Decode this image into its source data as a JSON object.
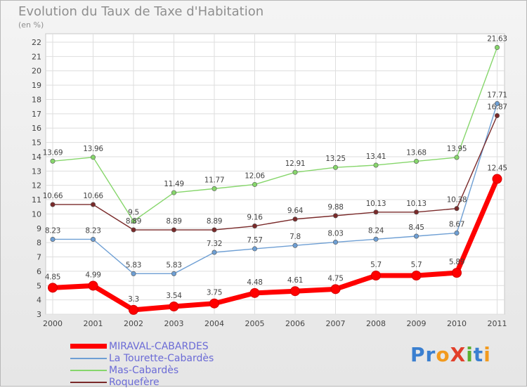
{
  "chart_data": {
    "type": "line",
    "title": "Evolution du Taux de Taxe d'Habitation",
    "subtitle": "(en %)",
    "xlabel": "",
    "ylabel": "",
    "ylim": [
      3,
      22
    ],
    "yticks": [
      3,
      4,
      5,
      6,
      7,
      8,
      9,
      10,
      11,
      12,
      13,
      14,
      15,
      16,
      17,
      18,
      19,
      20,
      21,
      22
    ],
    "categories": [
      "2000",
      "2001",
      "2002",
      "2003",
      "2004",
      "2005",
      "2006",
      "2007",
      "2008",
      "2009",
      "2010",
      "2011"
    ],
    "grid": true,
    "legend_position": "bottom-left",
    "series": [
      {
        "name": "MIRAVAL-CABARDES",
        "color": "#ff0000",
        "values": [
          4.85,
          4.99,
          3.3,
          3.54,
          3.75,
          4.48,
          4.61,
          4.75,
          5.7,
          5.7,
          5.89,
          12.45
        ],
        "labels": [
          "4.85",
          "4.99",
          "3.3",
          "3.54",
          "3.75",
          "4.48",
          "4.61",
          "4.75",
          "5.7",
          "5.7",
          "5.89",
          "12.45"
        ]
      },
      {
        "name": "La Tourette-Cabardès",
        "color": "#6e9fd4",
        "values": [
          8.23,
          8.23,
          5.83,
          5.83,
          7.32,
          7.57,
          7.8,
          8.03,
          8.24,
          8.45,
          8.67,
          17.71
        ],
        "labels": [
          "8.23",
          "8.23",
          "5.83",
          "5.83",
          "7.32",
          "7.57",
          "7.8",
          "8.03",
          "8.24",
          "8.45",
          "8.67",
          "17.71"
        ]
      },
      {
        "name": "Mas-Cabardès",
        "color": "#86d66b",
        "values": [
          13.69,
          13.96,
          9.5,
          11.49,
          11.77,
          12.06,
          12.91,
          13.25,
          13.41,
          13.68,
          13.95,
          21.63
        ],
        "labels": [
          "13.69",
          "13.96",
          "9.5",
          "11.49",
          "11.77",
          "12.06",
          "12.91",
          "13.25",
          "13.41",
          "13.68",
          "13.95",
          "21.63"
        ]
      },
      {
        "name": "Roquefère",
        "color": "#7a2a2a",
        "values": [
          10.66,
          10.66,
          8.89,
          8.89,
          8.89,
          9.16,
          9.64,
          9.88,
          10.13,
          10.13,
          10.38,
          16.87
        ],
        "labels": [
          "10.66",
          "10.66",
          "8.89",
          "8.89",
          "8.89",
          "9.16",
          "9.64",
          "9.88",
          "10.13",
          "10.13",
          "10.38",
          "16.87"
        ]
      }
    ]
  },
  "legend": {
    "items": [
      {
        "label": "MIRAVAL-CABARDES",
        "color": "#ff0000"
      },
      {
        "label": "La Tourette-Cabardès",
        "color": "#6e9fd4"
      },
      {
        "label": "Mas-Cabardès",
        "color": "#86d66b"
      },
      {
        "label": "Roquefère",
        "color": "#7a2a2a"
      }
    ]
  },
  "brand": {
    "text": "ProXiti",
    "letters": [
      "P",
      "r",
      "o",
      "X",
      "i",
      "t",
      "i"
    ],
    "colors": [
      "#3a7fd0",
      "#3a7fd0",
      "#f29a1e",
      "#e23f2a",
      "#5bb030",
      "#3a7fd0",
      "#f29a1e"
    ]
  }
}
